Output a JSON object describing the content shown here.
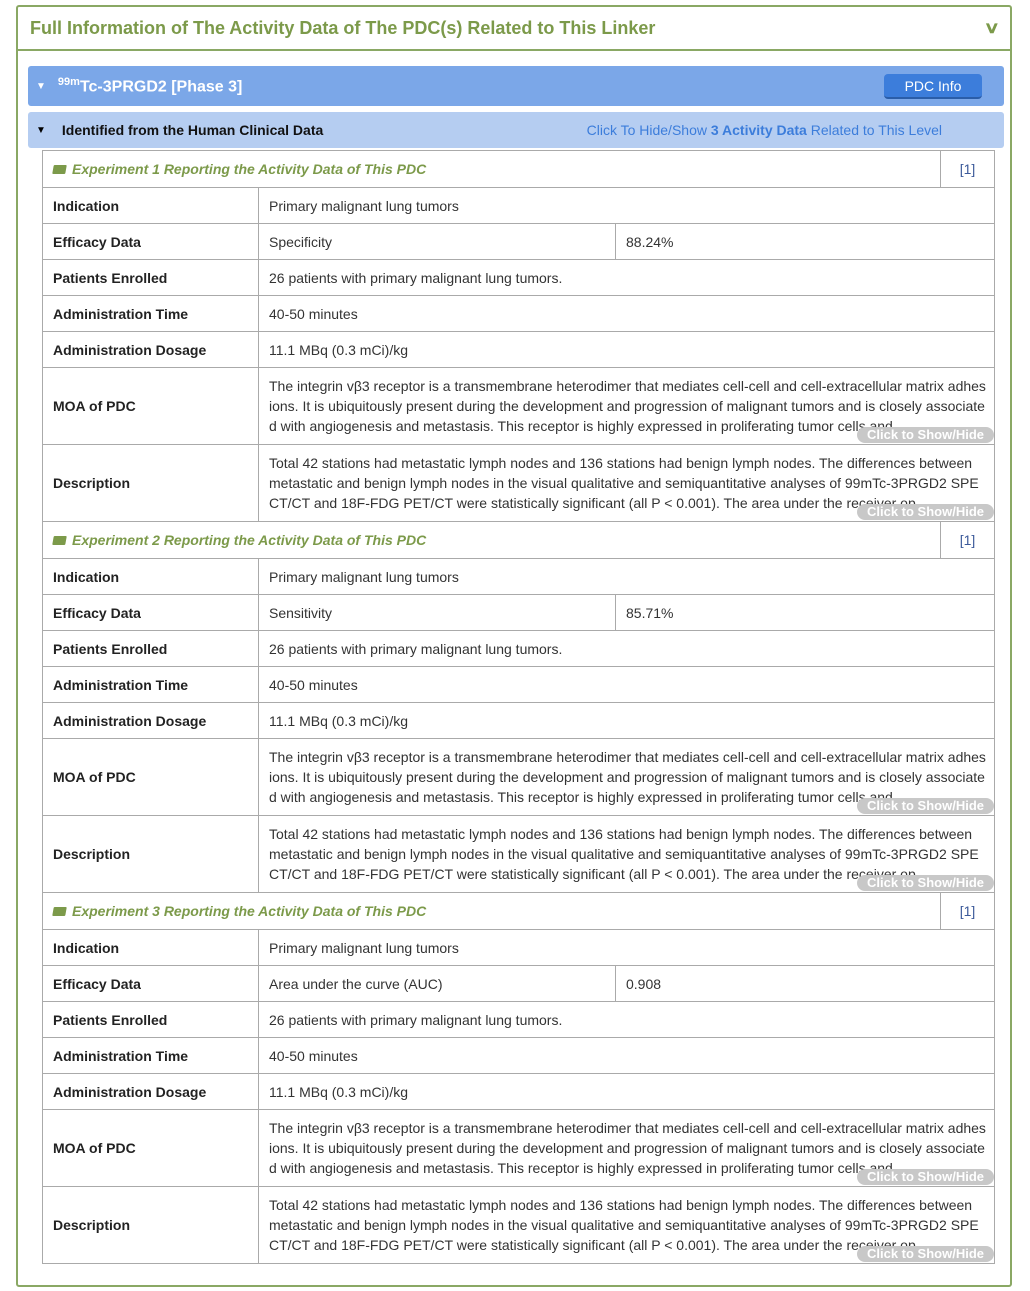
{
  "panel": {
    "title": "Full Information of The Activity Data of The PDC(s) Related to This Linker",
    "collapse_icon": "chevron-down-icon"
  },
  "pdc": {
    "name_sup": "99m",
    "name": "Tc-3PRGD2 [Phase 3]",
    "info_button": "PDC Info"
  },
  "level": {
    "title": "Identified from the Human Clinical Data",
    "link_pre": "Click To Hide/Show ",
    "link_bold": "3 Activity Data",
    "link_post": " Related to This Level"
  },
  "labels": {
    "indication": "Indication",
    "efficacy": "Efficacy Data",
    "patients": "Patients Enrolled",
    "time": "Administration Time",
    "dosage": "Administration Dosage",
    "moa": "MOA of PDC",
    "description": "Description",
    "show_hide": "Click to Show/Hide"
  },
  "experiments": [
    {
      "title": "Experiment 1 Reporting the Activity Data of This PDC",
      "ref": "[1]",
      "indication": "Primary malignant lung tumors",
      "efficacy_metric": "Specificity",
      "efficacy_value": "88.24%",
      "patients": "26 patients with primary malignant lung tumors.",
      "time": "40-50 minutes",
      "dosage": "11.1 MBq (0.3 mCi)/kg",
      "moa": "The integrin vβ3 receptor is a transmembrane heterodimer that mediates cell-cell and cell-extracellular matrix adhesions. It is ubiquitously present during the development and progression of malignant tumors and is closely associated with angiogenesis and metastasis. This receptor is highly expressed in proliferating tumor cells and",
      "description": "Total 42 stations had metastatic lymph nodes and 136 stations had benign lymph nodes. The differences between metastatic and benign lymph nodes in the visual qualitative and semiquantitative analyses of 99mTc-3PRGD2 SPECT/CT and 18F-FDG PET/CT were statistically significant (all P < 0.001). The area under the receiver op"
    },
    {
      "title": "Experiment 2 Reporting the Activity Data of This PDC",
      "ref": "[1]",
      "indication": "Primary malignant lung tumors",
      "efficacy_metric": "Sensitivity",
      "efficacy_value": "85.71%",
      "patients": "26 patients with primary malignant lung tumors.",
      "time": "40-50 minutes",
      "dosage": "11.1 MBq (0.3 mCi)/kg",
      "moa": "The integrin vβ3 receptor is a transmembrane heterodimer that mediates cell-cell and cell-extracellular matrix adhesions. It is ubiquitously present during the development and progression of malignant tumors and is closely associated with angiogenesis and metastasis. This receptor is highly expressed in proliferating tumor cells and",
      "description": "Total 42 stations had metastatic lymph nodes and 136 stations had benign lymph nodes. The differences between metastatic and benign lymph nodes in the visual qualitative and semiquantitative analyses of 99mTc-3PRGD2 SPECT/CT and 18F-FDG PET/CT were statistically significant (all P < 0.001). The area under the receiver op"
    },
    {
      "title": "Experiment 3 Reporting the Activity Data of This PDC",
      "ref": "[1]",
      "indication": "Primary malignant lung tumors",
      "efficacy_metric": "Area under the curve (AUC)",
      "efficacy_value": "0.908",
      "patients": "26 patients with primary malignant lung tumors.",
      "time": "40-50 minutes",
      "dosage": "11.1 MBq (0.3 mCi)/kg",
      "moa": "The integrin vβ3 receptor is a transmembrane heterodimer that mediates cell-cell and cell-extracellular matrix adhesions. It is ubiquitously present during the development and progression of malignant tumors and is closely associated with angiogenesis and metastasis. This receptor is highly expressed in proliferating tumor cells and",
      "description": "Total 42 stations had metastatic lymph nodes and 136 stations had benign lymph nodes. The differences between metastatic and benign lymph nodes in the visual qualitative and semiquantitative analyses of 99mTc-3PRGD2 SPECT/CT and 18F-FDG PET/CT were statistically significant (all P < 0.001). The area under the receiver op"
    }
  ]
}
